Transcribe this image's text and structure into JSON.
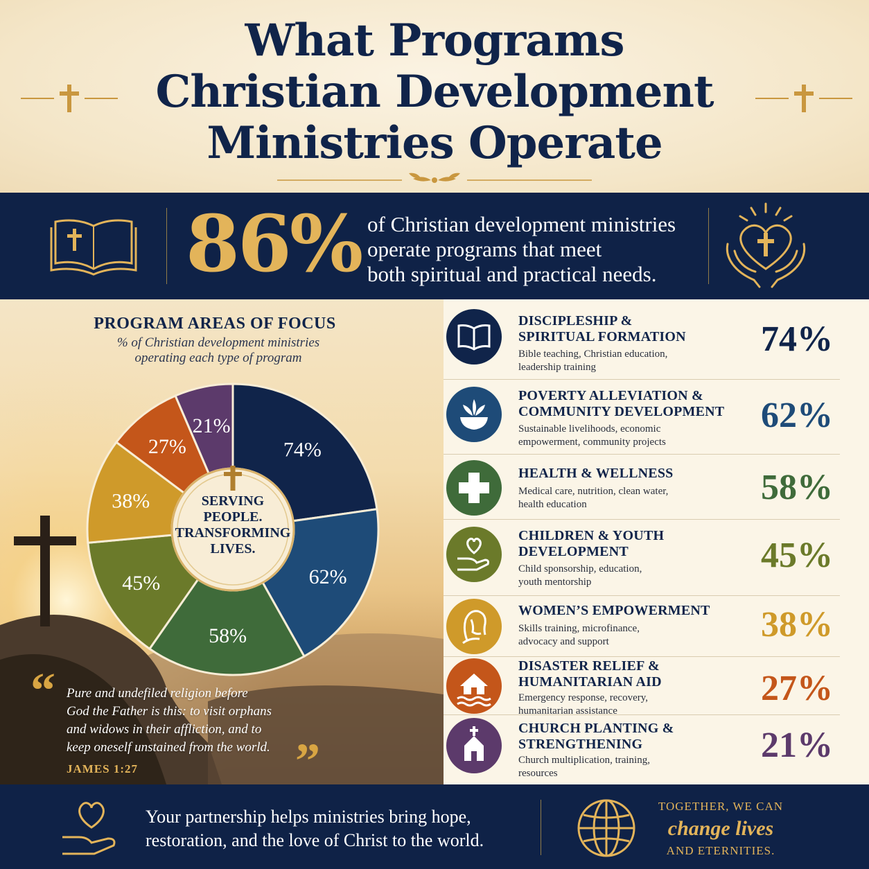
{
  "header": {
    "title_lines": [
      "What Programs",
      "Christian Development",
      "Ministries Operate"
    ]
  },
  "banner": {
    "stat": "86%",
    "text_lines": [
      "of Christian development ministries",
      "operate programs that meet",
      "both spiritual and practical needs."
    ],
    "left_icon": "open-bible-cross-icon",
    "right_icon": "hands-heart-cross-icon"
  },
  "program_areas": {
    "title": "PROGRAM AREAS OF FOCUS",
    "subtitle_lines": [
      "% of Christian development ministries",
      "operating each type of program"
    ],
    "center_lines": [
      "SERVING",
      "PEOPLE.",
      "TRANSFORMING",
      "LIVES."
    ]
  },
  "chart_data": {
    "type": "pie",
    "style": "donut",
    "categories": [
      "Discipleship & Spiritual Formation",
      "Poverty Alleviation & Community Development",
      "Health & Wellness",
      "Children & Youth Development",
      "Women's Empowerment",
      "Disaster Relief & Humanitarian Aid",
      "Church Planting & Strengthening"
    ],
    "values": [
      74,
      62,
      58,
      45,
      38,
      27,
      21
    ],
    "labels": [
      "74%",
      "62%",
      "58%",
      "45%",
      "38%",
      "27%",
      "21%"
    ],
    "colors": [
      "#10244a",
      "#1e4b78",
      "#3f6b3a",
      "#6b7a2a",
      "#cf9a2a",
      "#c4561a",
      "#5c3a6b"
    ]
  },
  "programs": [
    {
      "title_lines": [
        "DISCIPLESHIP &",
        "SPIRITUAL FORMATION"
      ],
      "desc_lines": [
        "Bible teaching, Christian education,",
        "leadership training"
      ],
      "pct": "74%",
      "icon": "book-icon",
      "color": "#10244a"
    },
    {
      "title_lines": [
        "POVERTY ALLEVIATION &",
        "COMMUNITY DEVELOPMENT"
      ],
      "desc_lines": [
        "Sustainable livelihoods, economic",
        "empowerment, community projects"
      ],
      "pct": "62%",
      "icon": "bowl-plant-icon",
      "color": "#1e4b78"
    },
    {
      "title_lines": [
        "HEALTH & WELLNESS"
      ],
      "desc_lines": [
        "Medical care, nutrition, clean water,",
        "health education"
      ],
      "pct": "58%",
      "icon": "medical-cross-icon",
      "color": "#3f6b3a"
    },
    {
      "title_lines": [
        "CHILDREN & YOUTH",
        "DEVELOPMENT"
      ],
      "desc_lines": [
        "Child sponsorship, education,",
        "youth mentorship"
      ],
      "pct": "45%",
      "icon": "hand-heart-icon",
      "color": "#6b7a2a"
    },
    {
      "title_lines": [
        "WOMEN’S EMPOWERMENT"
      ],
      "desc_lines": [
        "Skills training, microfinance,",
        "advocacy and support"
      ],
      "pct": "38%",
      "icon": "woman-profile-icon",
      "color": "#cf9a2a"
    },
    {
      "title_lines": [
        "DISASTER RELIEF &",
        "HUMANITARIAN AID"
      ],
      "desc_lines": [
        "Emergency response, recovery,",
        "humanitarian assistance"
      ],
      "pct": "27%",
      "icon": "house-flood-icon",
      "color": "#c4561a"
    },
    {
      "title_lines": [
        "CHURCH PLANTING &",
        "STRENGTHENING"
      ],
      "desc_lines": [
        "Church multiplication, training,",
        "resources"
      ],
      "pct": "21%",
      "icon": "church-icon",
      "color": "#5c3a6b"
    }
  ],
  "quote": {
    "open": "“",
    "close": "”",
    "lines": [
      "Pure and undefiled religion before",
      "God the Father is this: to visit orphans",
      "and widows in their affliction, and to",
      "keep oneself unstained from the world."
    ],
    "reference": "JAMES 1:27"
  },
  "footer": {
    "text_lines": [
      "Your partnership helps ministries bring hope,",
      "restoration, and the love of Christ to the world."
    ],
    "tag_top": "TOGETHER, WE CAN",
    "tag_mid": "change lives",
    "tag_bottom": "AND ETERNITIES.",
    "left_icon": "hand-heart-icon",
    "right_icon": "globe-icon"
  },
  "accent_colors": {
    "gold": "#e3b45a",
    "navy": "#0f2247"
  }
}
